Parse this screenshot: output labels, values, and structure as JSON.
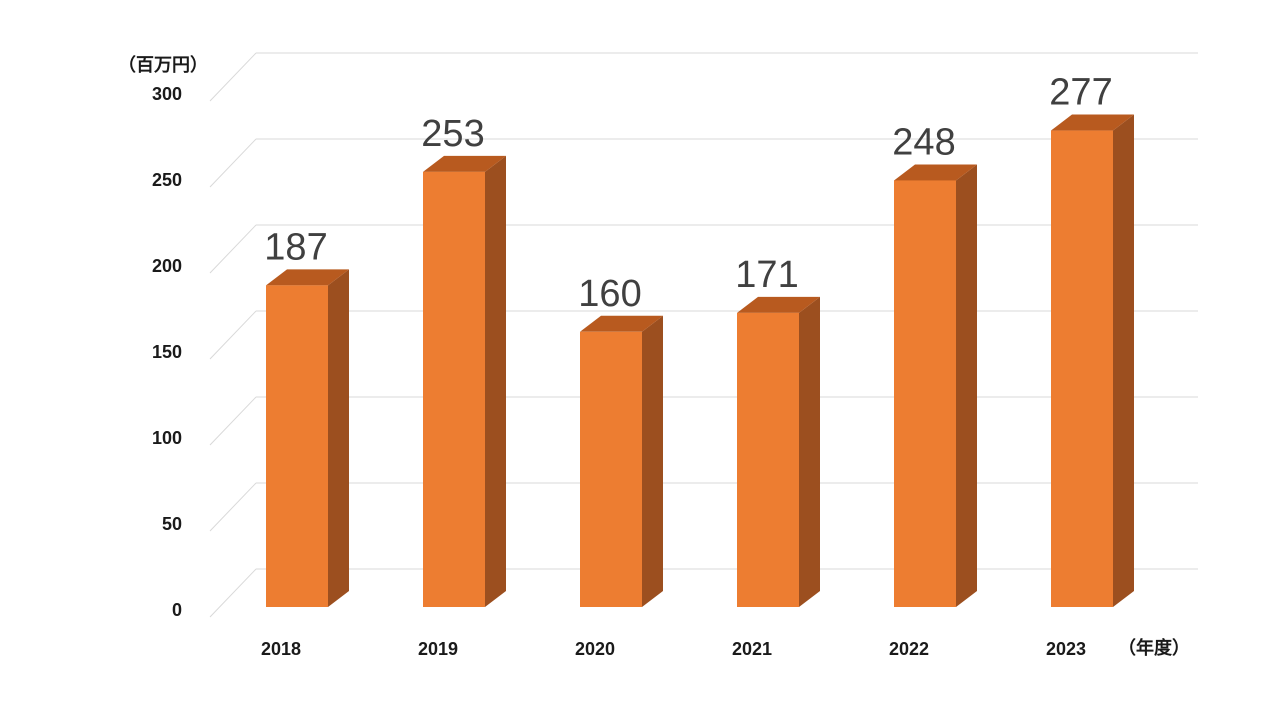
{
  "chart_data": {
    "type": "bar",
    "categories": [
      "2018",
      "2019",
      "2020",
      "2021",
      "2022",
      "2023"
    ],
    "values": [
      187,
      253,
      160,
      171,
      248,
      277
    ],
    "data_labels": [
      "187",
      "253",
      "160",
      "171",
      "248",
      "277"
    ],
    "ylim": [
      0,
      300
    ],
    "yticks": [
      "0",
      "50",
      "100",
      "150",
      "200",
      "250",
      "300"
    ],
    "y_unit_label": "（百万円）",
    "x_unit_label": "（年度）",
    "grid": true,
    "legend": "none",
    "style": "3d-column",
    "colors": {
      "bar_front": "#ED7D31",
      "bar_side": "#9C4F1F",
      "bar_top": "#B85A1F",
      "grid": "#D9D9D9",
      "axis_text": "#1a1a1a",
      "data_label": "#404040"
    }
  }
}
